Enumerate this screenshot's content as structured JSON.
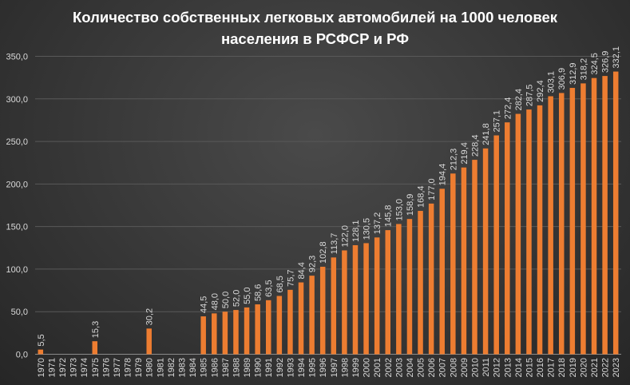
{
  "chart_data": {
    "type": "bar",
    "title_line1": "Количество собственных легковых автомобилей на 1000 человек",
    "title_line2": "населения в РСФСР и РФ",
    "xlabel": "",
    "ylabel": "",
    "ylim": [
      0,
      350
    ],
    "yticks": [
      "0,0",
      "50,0",
      "100,0",
      "150,0",
      "200,0",
      "250,0",
      "300,0",
      "350,0"
    ],
    "grid": true,
    "bar_color": "#ed7d31",
    "categories": [
      "1970",
      "1971",
      "1972",
      "1973",
      "1974",
      "1975",
      "1976",
      "1977",
      "1978",
      "1979",
      "1980",
      "1981",
      "1982",
      "1983",
      "1984",
      "1985",
      "1986",
      "1987",
      "1988",
      "1989",
      "1990",
      "1991",
      "1992",
      "1993",
      "1994",
      "1995",
      "1996",
      "1997",
      "1998",
      "1999",
      "2000",
      "2001",
      "2002",
      "2003",
      "2004",
      "2005",
      "2006",
      "2007",
      "2008",
      "2009",
      "2010",
      "2011",
      "2012",
      "2013",
      "2014",
      "2015",
      "2016",
      "2017",
      "2018",
      "2019",
      "2020",
      "2021",
      "2022",
      "2023"
    ],
    "values": [
      5.5,
      null,
      null,
      null,
      null,
      15.3,
      null,
      null,
      null,
      null,
      30.2,
      null,
      null,
      null,
      null,
      44.5,
      48.0,
      50.0,
      52.0,
      55.0,
      58.6,
      63.5,
      68.5,
      75.7,
      84.4,
      92.3,
      102.8,
      113.7,
      122.0,
      128.1,
      130.5,
      137.2,
      145.8,
      153.0,
      158.9,
      168.4,
      177.0,
      194.4,
      212.3,
      219.4,
      228.4,
      241.8,
      257.1,
      272.4,
      282.4,
      287.5,
      292.4,
      303.1,
      306.9,
      312.9,
      318.2,
      324.5,
      326.9,
      332.1
    ],
    "labels": [
      "5,5",
      "",
      "",
      "",
      "",
      "15,3",
      "",
      "",
      "",
      "",
      "30,2",
      "",
      "",
      "",
      "",
      "44,5",
      "48,0",
      "50,0",
      "52,0",
      "55,0",
      "58,6",
      "63,5",
      "68,5",
      "75,7",
      "84,4",
      "92,3",
      "102,8",
      "113,7",
      "122,0",
      "128,1",
      "130,5",
      "137,2",
      "145,8",
      "153,0",
      "158,9",
      "168,4",
      "177,0",
      "194,4",
      "212,3",
      "219,4",
      "228,4",
      "241,8",
      "257,1",
      "272,4",
      "282,4",
      "287,5",
      "292,4",
      "303,1",
      "306,9",
      "312,9",
      "318,2",
      "324,5",
      "326,9",
      "332,1"
    ]
  }
}
